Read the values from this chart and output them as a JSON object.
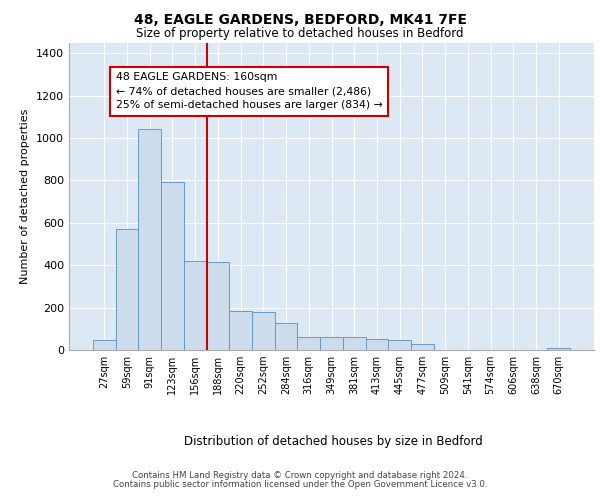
{
  "title1": "48, EAGLE GARDENS, BEDFORD, MK41 7FE",
  "title2": "Size of property relative to detached houses in Bedford",
  "xlabel": "Distribution of detached houses by size in Bedford",
  "ylabel": "Number of detached properties",
  "categories": [
    "27sqm",
    "59sqm",
    "91sqm",
    "123sqm",
    "156sqm",
    "188sqm",
    "220sqm",
    "252sqm",
    "284sqm",
    "316sqm",
    "349sqm",
    "381sqm",
    "413sqm",
    "445sqm",
    "477sqm",
    "509sqm",
    "541sqm",
    "574sqm",
    "606sqm",
    "638sqm",
    "670sqm"
  ],
  "values": [
    47,
    570,
    1040,
    793,
    420,
    415,
    183,
    180,
    125,
    62,
    62,
    60,
    50,
    47,
    26,
    0,
    0,
    0,
    0,
    0,
    11
  ],
  "bar_color": "#ccdcec",
  "bar_edge_color": "#6699cc",
  "vline_color": "#cc0000",
  "annotation_text": "48 EAGLE GARDENS: 160sqm\n← 74% of detached houses are smaller (2,486)\n25% of semi-detached houses are larger (834) →",
  "annotation_box_facecolor": "#ffffff",
  "annotation_box_edgecolor": "#cc0000",
  "ylim": [
    0,
    1450
  ],
  "yticks": [
    0,
    200,
    400,
    600,
    800,
    1000,
    1200,
    1400
  ],
  "background_color": "#dde8f5",
  "grid_color": "#ffffff",
  "footer1": "Contains HM Land Registry data © Crown copyright and database right 2024.",
  "footer2": "Contains public sector information licensed under the Open Government Licence v3.0."
}
